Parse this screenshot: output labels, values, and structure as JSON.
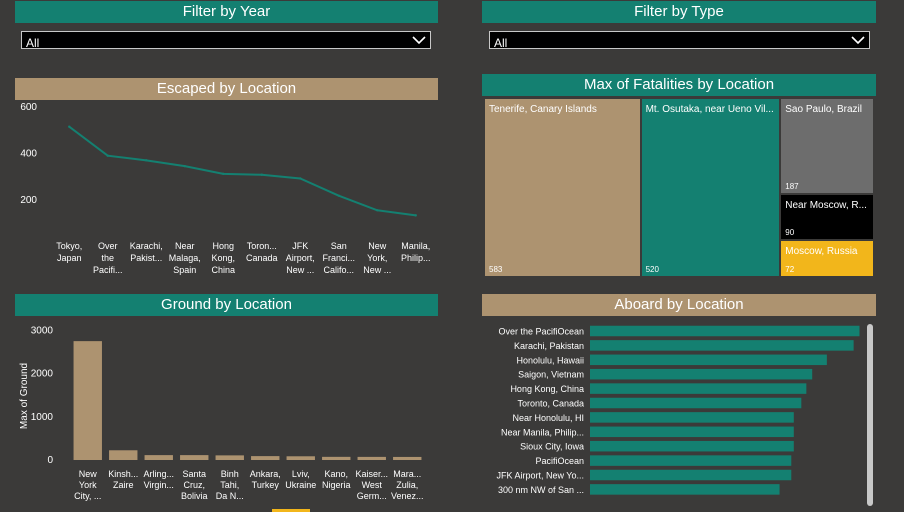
{
  "filters": {
    "year": {
      "title": "Filter by Year",
      "value": "All"
    },
    "type": {
      "title": "Filter by Type",
      "value": "All"
    }
  },
  "colors": {
    "teal": "#148071",
    "tan": "#ad9370",
    "gray": "#6d6d6d",
    "black": "#000000",
    "yellow": "#f2b61b",
    "background": "#3b3a39"
  },
  "chart_data": [
    {
      "id": "escaped",
      "type": "line",
      "title": "Escaped by Location",
      "categories": [
        [
          "Tokyo,",
          "Japan"
        ],
        [
          "Over",
          "the",
          "Pacifi..."
        ],
        [
          "Karachi,",
          "Pakist..."
        ],
        [
          "Near",
          "Malaga,",
          "Spain"
        ],
        [
          "Hong",
          "Kong,",
          "China"
        ],
        [
          "Toron...",
          "Canada"
        ],
        [
          "JFK",
          "Airport,",
          "New ..."
        ],
        [
          "San",
          "Franci...",
          "Califo..."
        ],
        [
          "New",
          "York,",
          "New ..."
        ],
        [
          "Manila,",
          "Philip..."
        ]
      ],
      "values": [
        515,
        390,
        370,
        345,
        312,
        308,
        292,
        218,
        155,
        133
      ],
      "yticks": [
        200,
        400,
        600
      ],
      "ylim": [
        70,
        630
      ],
      "color": "#148071"
    },
    {
      "id": "ground",
      "type": "bar",
      "title": "Ground by Location",
      "ylabel": "Max of Ground",
      "categories": [
        [
          "New",
          "York",
          "City, ..."
        ],
        [
          "Kinsh...",
          "Zaire"
        ],
        [
          "Arling...",
          "Virgin..."
        ],
        [
          "Santa",
          "Cruz,",
          "Bolivia"
        ],
        [
          "Binh",
          "Tahi,",
          "Da N..."
        ],
        [
          "Ankara,",
          "Turkey"
        ],
        [
          "Lviv,",
          "Ukraine"
        ],
        [
          "Kano,",
          "Nigeria"
        ],
        [
          "Kaiser...",
          "West",
          "Germ..."
        ],
        [
          "Mara...",
          "Zulia,",
          "Venez..."
        ]
      ],
      "values": [
        2750,
        225,
        113,
        113,
        107,
        90,
        86,
        73,
        72,
        71
      ],
      "yticks": [
        0,
        1000,
        2000,
        3000
      ],
      "ylim": [
        0,
        3100
      ],
      "color": "#ad9370"
    },
    {
      "id": "fatalities",
      "type": "treemap",
      "title": "Max of Fatalities by Location",
      "items": [
        {
          "label": "Tenerife, Canary Islands",
          "value": 583,
          "color": "#ad9370"
        },
        {
          "label": "Mt. Osutaka, near Ueno Vil...",
          "value": 520,
          "color": "#148071"
        },
        {
          "label": "Sao Paulo, Brazil",
          "value": 187,
          "color": "#6d6d6d"
        },
        {
          "label": "Near Moscow, R...",
          "value": 90,
          "color": "#000000"
        },
        {
          "label": "Moscow, Russia",
          "value": 72,
          "color": "#f2b61b"
        }
      ]
    },
    {
      "id": "aboard",
      "type": "bar",
      "orientation": "horizontal",
      "title": "Aboard by Location",
      "categories": [
        "Over the PacifiOcean",
        "Karachi, Pakistan",
        "Honolulu, Hawaii",
        "Saigon, Vietnam",
        "Hong Kong, China",
        "Toronto, Canada",
        "Near Honolulu, HI",
        "Near Manila, Philip...",
        "Sioux City, Iowa",
        "PacifiOcean",
        "JFK Airport, New Yo...",
        "300 nm NW of San ..."
      ],
      "values": [
        644,
        630,
        566,
        531,
        517,
        505,
        487,
        487,
        487,
        481,
        481,
        453
      ],
      "xlim": [
        0,
        650
      ],
      "color": "#148071"
    }
  ]
}
